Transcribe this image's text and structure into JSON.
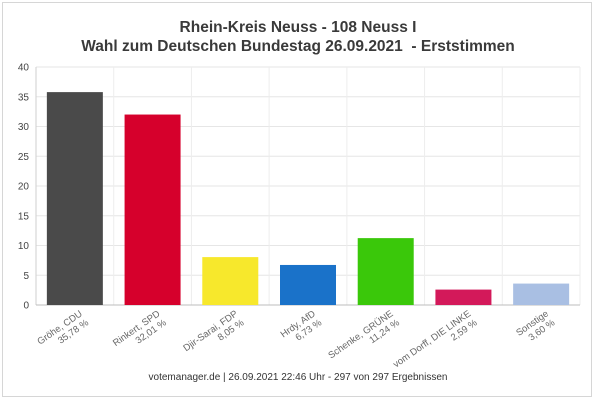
{
  "chart_data": {
    "type": "bar",
    "title": "Rhein-Kreis Neuss - 108 Neuss I",
    "subtitle": "Wahl zum Deutschen Bundestag 26.09.2021  - Erststimmen",
    "categories": [
      [
        "Gröhe, CDU",
        "35,78 %"
      ],
      [
        "Rinkert, SPD",
        "32,01 %"
      ],
      [
        "Djir-Sarai, FDP",
        "8,05 %"
      ],
      [
        "Hrdy, AfD",
        "6,73 %"
      ],
      [
        "Schenke, GRÜNE",
        "11,24 %"
      ],
      [
        "vom Dorff, DIE LINKE",
        "2,59 %"
      ],
      [
        "Sonstige",
        "3,60 %"
      ]
    ],
    "values": [
      35.78,
      32.01,
      8.05,
      6.73,
      11.24,
      2.59,
      3.6
    ],
    "colors": [
      "#4a4a4a",
      "#d6002c",
      "#f7e82c",
      "#1a72c9",
      "#3ac80a",
      "#d3195a",
      "#a9bfe3"
    ],
    "ylim": [
      0,
      40
    ],
    "yticks": [
      0,
      5,
      10,
      15,
      20,
      25,
      30,
      35,
      40
    ],
    "grid": true,
    "xlabel": "",
    "ylabel": ""
  },
  "footer": "votemanager.de | 26.09.2021 22:46 Uhr - 297 von 297 Ergebnissen"
}
